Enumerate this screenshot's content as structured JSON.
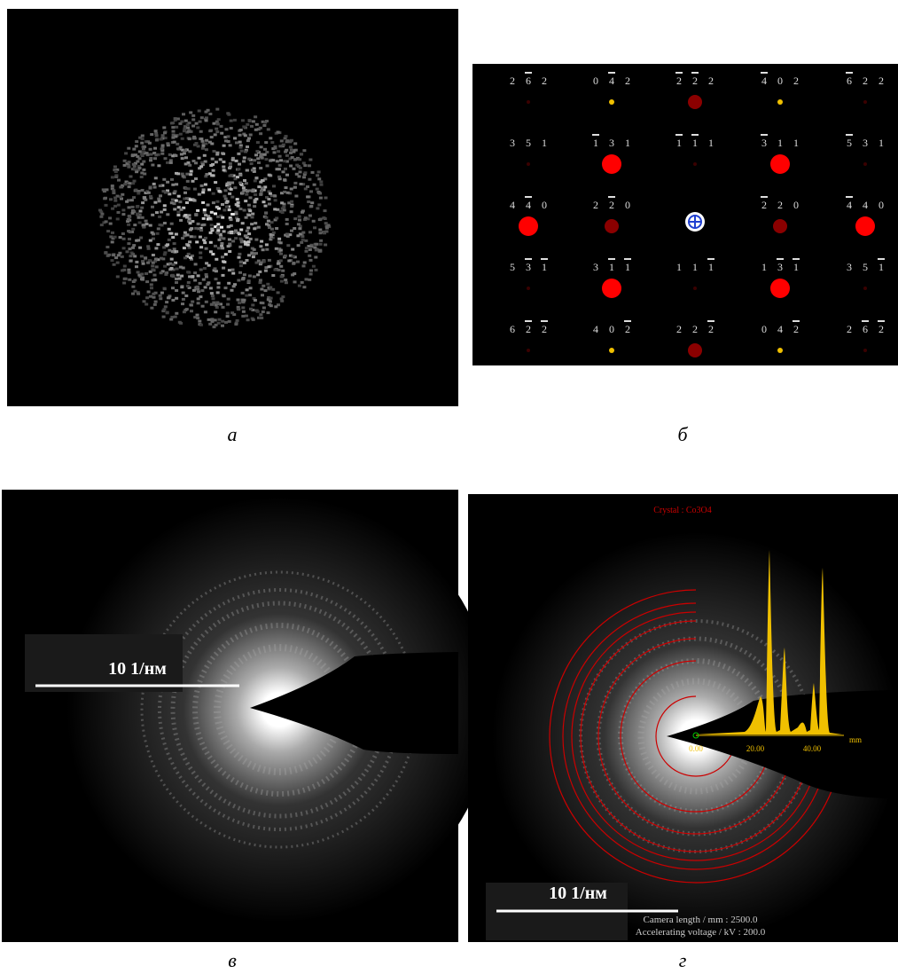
{
  "panels": {
    "a": {
      "label": "а"
    },
    "b": {
      "label": "б"
    },
    "c": {
      "label": "в",
      "scale_bar": "10 1/нм"
    },
    "d": {
      "label": "г",
      "scale_bar": "10 1/нм",
      "crystal": "Crystal : Co3O4",
      "camera_length": "Camera length / mm : 2500.0",
      "voltage": "Accelerating voltage / kV : 200.0",
      "axis_ticks": [
        "0.00",
        "20.00",
        "40.00"
      ],
      "axis_unit": "mm"
    }
  },
  "pattern": {
    "rows": [
      [
        {
          "indices": [
            "2",
            "6",
            "2"
          ],
          "bars": [
            false,
            true,
            false
          ],
          "color": "#3a0000"
        },
        {
          "indices": [
            "0",
            "4",
            "2"
          ],
          "bars": [
            false,
            true,
            false
          ],
          "color": "#f0c000"
        },
        {
          "indices": [
            "2",
            "2",
            "2"
          ],
          "bars": [
            true,
            true,
            false
          ],
          "color": "#8b0000"
        },
        {
          "indices": [
            "4",
            "0",
            "2"
          ],
          "bars": [
            true,
            false,
            false
          ],
          "color": "#f0c000"
        },
        {
          "indices": [
            "6",
            "2",
            "2"
          ],
          "bars": [
            true,
            false,
            false
          ],
          "color": "#3a0000"
        }
      ],
      [
        {
          "indices": [
            "3",
            "5",
            "1"
          ],
          "bars": [
            false,
            false,
            false
          ],
          "color": "#3a0000"
        },
        {
          "indices": [
            "1",
            "3",
            "1"
          ],
          "bars": [
            true,
            false,
            false
          ],
          "color": "#ff0000"
        },
        {
          "indices": [
            "1",
            "1",
            "1"
          ],
          "bars": [
            true,
            true,
            false
          ],
          "color": "#3a0000"
        },
        {
          "indices": [
            "3",
            "1",
            "1"
          ],
          "bars": [
            true,
            false,
            false
          ],
          "color": "#ff0000"
        },
        {
          "indices": [
            "5",
            "3",
            "1"
          ],
          "bars": [
            true,
            false,
            false
          ],
          "color": "#3a0000"
        }
      ],
      [
        {
          "indices": [
            "4",
            "4",
            "0"
          ],
          "bars": [
            false,
            true,
            false
          ],
          "color": "#ff0000"
        },
        {
          "indices": [
            "2",
            "2",
            "0"
          ],
          "bars": [
            false,
            true,
            false
          ],
          "color": "#8b0000"
        },
        null,
        {
          "indices": [
            "2",
            "2",
            "0"
          ],
          "bars": [
            true,
            false,
            false
          ],
          "color": "#8b0000"
        },
        {
          "indices": [
            "4",
            "4",
            "0"
          ],
          "bars": [
            true,
            false,
            false
          ],
          "color": "#ff0000"
        }
      ],
      [
        {
          "indices": [
            "5",
            "3",
            "1"
          ],
          "bars": [
            false,
            true,
            true
          ],
          "color": "#3a0000"
        },
        {
          "indices": [
            "3",
            "1",
            "1"
          ],
          "bars": [
            false,
            true,
            true
          ],
          "color": "#ff0000"
        },
        {
          "indices": [
            "1",
            "1",
            "1"
          ],
          "bars": [
            false,
            false,
            true
          ],
          "color": "#3a0000"
        },
        {
          "indices": [
            "1",
            "3",
            "1"
          ],
          "bars": [
            false,
            true,
            true
          ],
          "color": "#ff0000"
        },
        {
          "indices": [
            "3",
            "5",
            "1"
          ],
          "bars": [
            false,
            false,
            true
          ],
          "color": "#3a0000"
        }
      ],
      [
        {
          "indices": [
            "6",
            "2",
            "2"
          ],
          "bars": [
            false,
            true,
            true
          ],
          "color": "#3a0000"
        },
        {
          "indices": [
            "4",
            "0",
            "2"
          ],
          "bars": [
            false,
            false,
            true
          ],
          "color": "#f0c000"
        },
        {
          "indices": [
            "2",
            "2",
            "2"
          ],
          "bars": [
            false,
            false,
            true
          ],
          "color": "#8b0000"
        },
        {
          "indices": [
            "0",
            "4",
            "2"
          ],
          "bars": [
            false,
            false,
            true
          ],
          "color": "#f0c000"
        },
        {
          "indices": [
            "2",
            "6",
            "2"
          ],
          "bars": [
            false,
            true,
            true
          ],
          "color": "#3a0000"
        }
      ]
    ]
  }
}
